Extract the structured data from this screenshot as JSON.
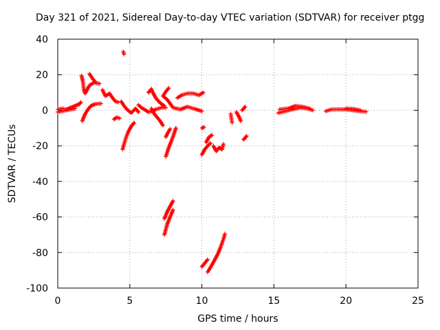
{
  "chart_data": {
    "type": "scatter",
    "title": "Day 321 of 2021, Sidereal Day-to-day VTEC variation (SDTVAR) for receiver ptgg",
    "xlabel": "GPS time / hours",
    "ylabel": "SDTVAR / TECUs",
    "xlim": [
      0,
      25
    ],
    "ylim": [
      -100,
      40
    ],
    "xticks": [
      0,
      5,
      10,
      15,
      20,
      25
    ],
    "yticks": [
      -100,
      -80,
      -60,
      -40,
      -20,
      0,
      20,
      40
    ],
    "grid": true,
    "marker": "plus",
    "color": "#ff0000",
    "segments": [
      [
        [
          0.0,
          0.5
        ],
        [
          0.3,
          1.0
        ],
        [
          0.6,
          0.5
        ],
        [
          0.9,
          1.5
        ],
        [
          1.2,
          2.5
        ],
        [
          1.5,
          3.5
        ],
        [
          1.6,
          4.5
        ]
      ],
      [
        [
          0.0,
          -1.0
        ],
        [
          0.3,
          -0.5
        ],
        [
          0.6,
          0.0
        ],
        [
          0.9,
          0.5
        ],
        [
          1.2,
          1.0
        ]
      ],
      [
        [
          1.65,
          19.5
        ],
        [
          1.75,
          16.0
        ],
        [
          1.8,
          12.0
        ],
        [
          1.9,
          9.5
        ],
        [
          2.0,
          11.0
        ],
        [
          2.2,
          14.0
        ],
        [
          2.5,
          15.5
        ],
        [
          2.9,
          15.0
        ]
      ],
      [
        [
          2.2,
          20.5
        ],
        [
          2.4,
          18.0
        ],
        [
          2.6,
          16.0
        ]
      ],
      [
        [
          1.7,
          -6.0
        ],
        [
          1.9,
          -2.0
        ],
        [
          2.1,
          0.5
        ],
        [
          2.3,
          2.5
        ],
        [
          2.6,
          3.5
        ],
        [
          3.0,
          3.8
        ]
      ],
      [
        [
          3.1,
          11.5
        ],
        [
          3.3,
          8.0
        ],
        [
          3.6,
          9.5
        ],
        [
          3.8,
          7.0
        ],
        [
          4.0,
          5.0
        ],
        [
          4.2,
          4.5
        ]
      ],
      [
        [
          4.55,
          33.0
        ],
        [
          4.6,
          31.5
        ]
      ],
      [
        [
          3.9,
          -5.0
        ],
        [
          4.1,
          -4.0
        ],
        [
          4.3,
          -4.5
        ]
      ],
      [
        [
          4.4,
          5.0
        ],
        [
          4.6,
          2.5
        ],
        [
          4.8,
          0.5
        ],
        [
          5.1,
          -1.5
        ],
        [
          5.4,
          1.0
        ],
        [
          5.6,
          -1.0
        ]
      ],
      [
        [
          4.5,
          -22.0
        ],
        [
          4.6,
          -19.0
        ],
        [
          4.75,
          -15.0
        ],
        [
          4.9,
          -12.0
        ],
        [
          5.1,
          -9.0
        ],
        [
          5.3,
          -7.0
        ]
      ],
      [
        [
          5.6,
          3.0
        ],
        [
          5.8,
          1.5
        ],
        [
          6.1,
          0.0
        ],
        [
          6.3,
          -1.0
        ],
        [
          6.6,
          -0.5
        ],
        [
          6.8,
          0.5
        ],
        [
          7.2,
          1.5
        ],
        [
          7.5,
          1.5
        ]
      ],
      [
        [
          6.5,
          1.0
        ],
        [
          6.7,
          -2.0
        ],
        [
          6.9,
          -4.0
        ],
        [
          7.1,
          -6.0
        ],
        [
          7.3,
          -8.5
        ]
      ],
      [
        [
          6.3,
          10.0
        ],
        [
          6.5,
          12.0
        ],
        [
          6.6,
          10.0
        ],
        [
          6.8,
          7.0
        ],
        [
          7.0,
          5.0
        ],
        [
          7.2,
          3.5
        ],
        [
          7.4,
          2.5
        ]
      ],
      [
        [
          7.5,
          -26.0
        ],
        [
          7.7,
          -21.0
        ],
        [
          7.9,
          -17.0
        ],
        [
          8.1,
          -12.5
        ],
        [
          8.2,
          -10.0
        ]
      ],
      [
        [
          7.5,
          -15.0
        ],
        [
          7.65,
          -12.5
        ],
        [
          7.8,
          -10.5
        ]
      ],
      [
        [
          7.4,
          -61.0
        ],
        [
          7.6,
          -57.0
        ],
        [
          7.8,
          -54.0
        ],
        [
          8.0,
          -51.0
        ]
      ],
      [
        [
          7.4,
          -70.0
        ],
        [
          7.6,
          -64.0
        ],
        [
          7.8,
          -60.0
        ],
        [
          8.0,
          -56.0
        ]
      ],
      [
        [
          7.7,
          12.5
        ],
        [
          7.5,
          10.5
        ],
        [
          7.3,
          8.0
        ],
        [
          7.6,
          6.0
        ],
        [
          8.0,
          1.5
        ],
        [
          8.5,
          0.5
        ],
        [
          9.0,
          2.0
        ],
        [
          9.5,
          0.8
        ],
        [
          10.0,
          -0.5
        ]
      ],
      [
        [
          8.3,
          7.0
        ],
        [
          8.6,
          8.5
        ],
        [
          9.0,
          9.5
        ],
        [
          9.4,
          9.5
        ],
        [
          9.8,
          8.5
        ],
        [
          10.1,
          10.0
        ]
      ],
      [
        [
          10.0,
          -10.0
        ],
        [
          10.15,
          -9.5
        ]
      ],
      [
        [
          10.0,
          -25.0
        ],
        [
          10.2,
          -22.0
        ],
        [
          10.4,
          -20.0
        ],
        [
          10.6,
          -18.5
        ]
      ],
      [
        [
          10.3,
          -18.0
        ],
        [
          10.5,
          -15.0
        ],
        [
          10.7,
          -14.0
        ]
      ],
      [
        [
          10.8,
          -20.0
        ],
        [
          11.0,
          -23.0
        ],
        [
          11.2,
          -21.0
        ],
        [
          11.4,
          -22.0
        ],
        [
          11.5,
          -19.0
        ]
      ],
      [
        [
          10.0,
          -88.0
        ],
        [
          10.2,
          -86.0
        ],
        [
          10.4,
          -84.0
        ]
      ],
      [
        [
          10.4,
          -91.0
        ],
        [
          10.7,
          -87.0
        ],
        [
          10.9,
          -84.0
        ],
        [
          11.1,
          -81.0
        ],
        [
          11.3,
          -77.0
        ],
        [
          11.5,
          -72.5
        ],
        [
          11.6,
          -69.5
        ]
      ],
      [
        [
          12.0,
          -2.0
        ],
        [
          12.1,
          -7.0
        ]
      ],
      [
        [
          12.4,
          -1.0
        ],
        [
          12.6,
          -4.0
        ],
        [
          12.7,
          -6.0
        ]
      ],
      [
        [
          12.8,
          0.0
        ],
        [
          13.0,
          2.0
        ]
      ],
      [
        [
          12.9,
          -16.5
        ],
        [
          13.1,
          -14.5
        ]
      ],
      [
        [
          15.3,
          -1.5
        ],
        [
          15.8,
          -0.5
        ],
        [
          16.3,
          0.5
        ],
        [
          16.8,
          1.5
        ],
        [
          17.3,
          1.0
        ],
        [
          17.7,
          0.0
        ]
      ],
      [
        [
          15.4,
          0.5
        ],
        [
          16.0,
          1.0
        ],
        [
          16.5,
          2.5
        ],
        [
          17.0,
          2.0
        ],
        [
          17.5,
          1.0
        ]
      ],
      [
        [
          18.6,
          -0.5
        ],
        [
          19.0,
          0.5
        ],
        [
          19.5,
          0.5
        ],
        [
          20.0,
          0.5
        ],
        [
          20.5,
          0.0
        ],
        [
          21.0,
          -0.5
        ],
        [
          21.4,
          -0.8
        ]
      ],
      [
        [
          20.0,
          1.0
        ],
        [
          20.5,
          0.8
        ],
        [
          21.0,
          0.0
        ]
      ]
    ]
  }
}
